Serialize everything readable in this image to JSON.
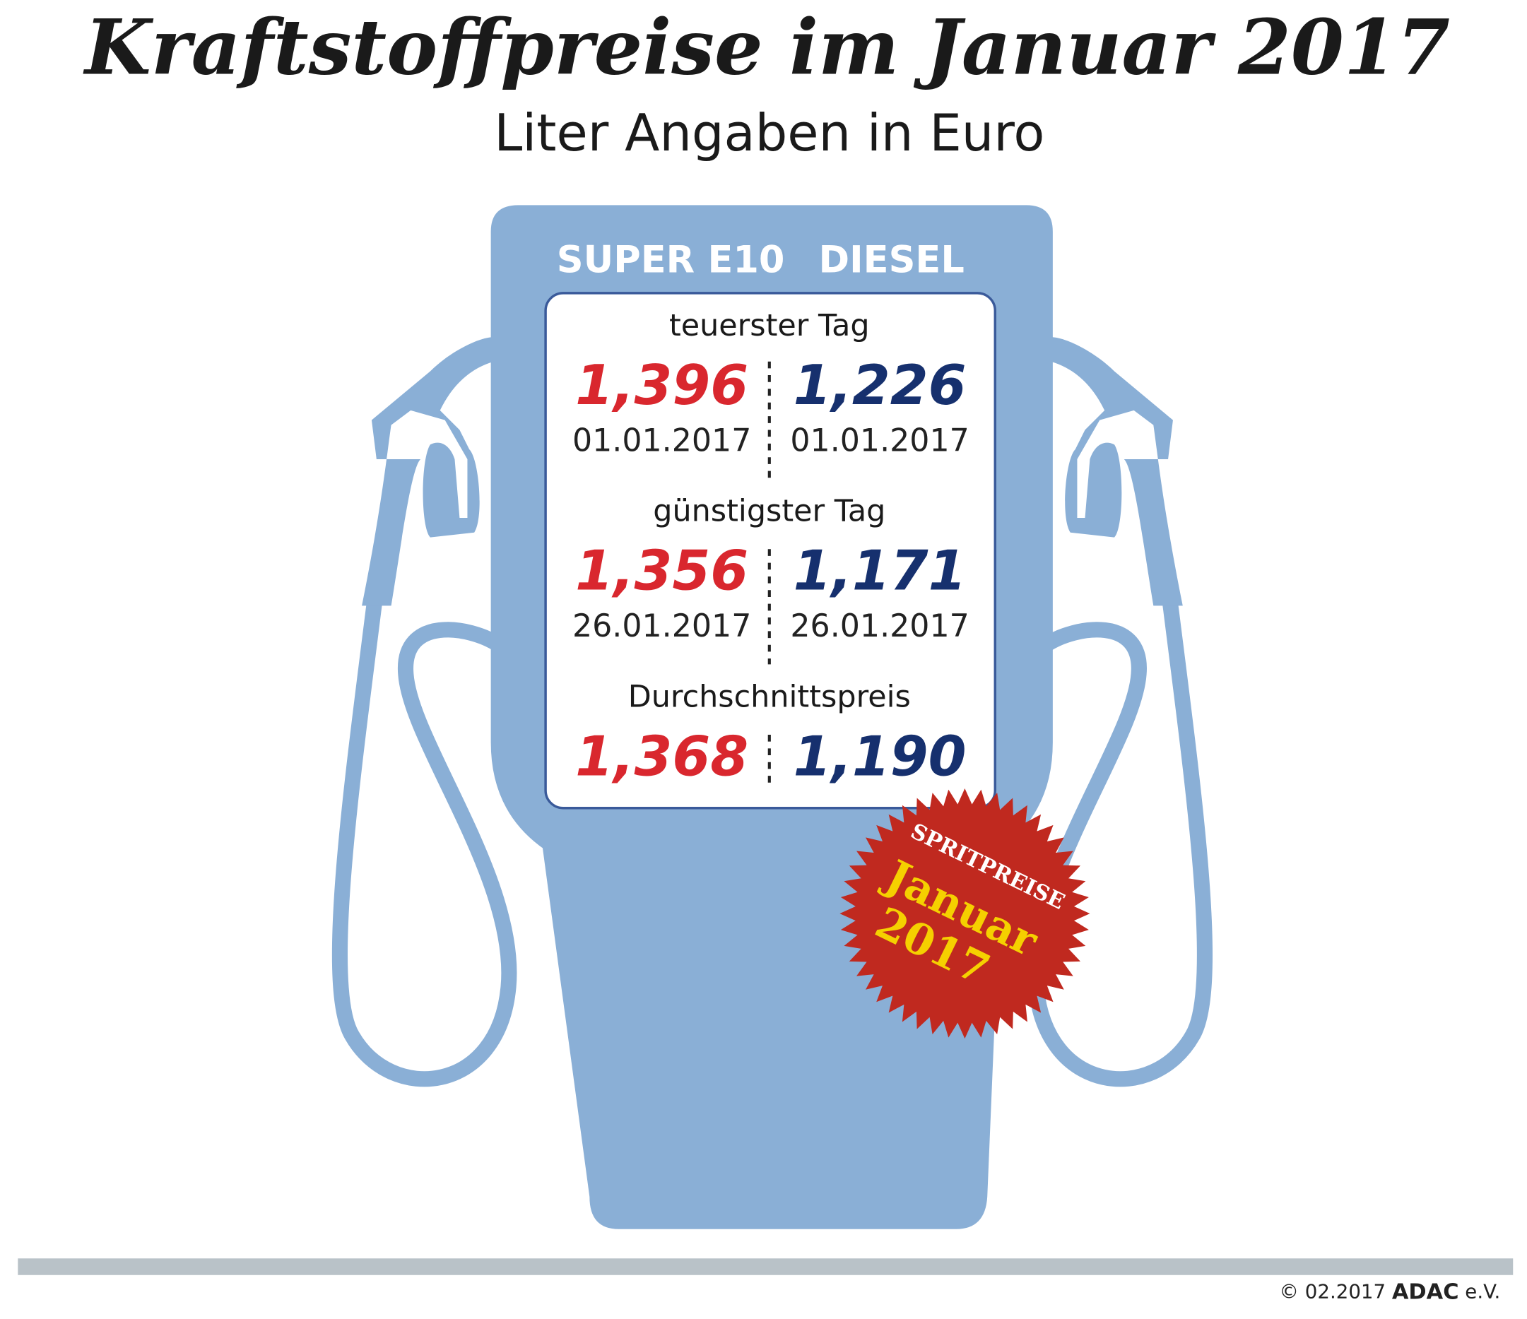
{
  "title": "Kraftstoffpreise im Januar 2017",
  "subtitle": "Liter Angaben in Euro",
  "columns": [
    "SUPER E10",
    "DIESEL"
  ],
  "sections": [
    {
      "label": "teuerster Tag",
      "prices": [
        "1,396",
        "1,226"
      ],
      "dates": [
        "01.01.2017",
        "01.01.2017"
      ]
    },
    {
      "label": "günstigster Tag",
      "prices": [
        "1,356",
        "1,171"
      ],
      "dates": [
        "26.01.2017",
        "26.01.2017"
      ]
    },
    {
      "label": "Durchschnittspreis",
      "prices": [
        "1,368",
        "1,190"
      ]
    }
  ],
  "badge": {
    "top": "SPRITPREISE",
    "line1": "Januar",
    "line2": "2017"
  },
  "footer": {
    "copyright": "© 02.2017",
    "brand": "ADAC",
    "suffix": "e.V."
  }
}
